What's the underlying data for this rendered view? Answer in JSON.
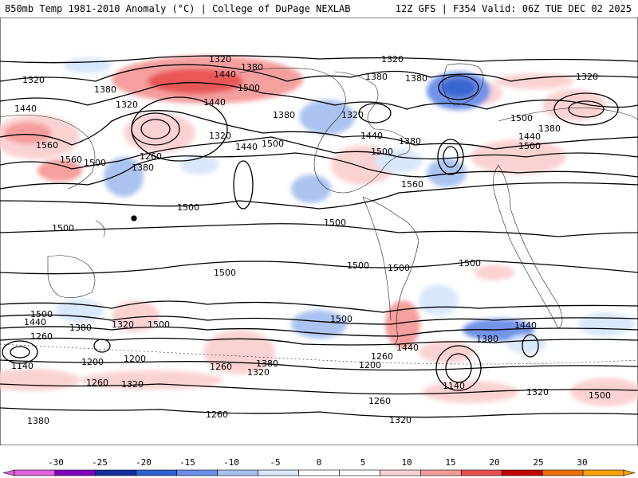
{
  "header": {
    "title_left": "850mb Temp 1981-2010 Anomaly (°C) | College of DuPage NEXLAB",
    "title_right": "12Z GFS | F354 Valid: 06Z TUE DEC 02 2025"
  },
  "colorbar": {
    "ticks": [
      "-30",
      "-25",
      "-20",
      "-15",
      "-10",
      "-5",
      "0",
      "5",
      "10",
      "15",
      "20",
      "25",
      "30"
    ],
    "colors": [
      "#e060e0",
      "#8000c0",
      "#1030a0",
      "#2f5fd0",
      "#6a8ee8",
      "#a8c0f0",
      "#d8e6fb",
      "#ffffff",
      "#ffffff",
      "#fbd0d0",
      "#f59a9a",
      "#e85050",
      "#c00000",
      "#e87000",
      "#ffa000"
    ]
  },
  "map": {
    "background": "#ffffff",
    "height_labels": [
      {
        "text": "1320"
      },
      {
        "text": "1380"
      },
      {
        "text": "1440"
      },
      {
        "text": "1500"
      },
      {
        "text": "1560"
      },
      {
        "text": "1260"
      },
      {
        "text": "1200"
      },
      {
        "text": "1140"
      }
    ],
    "contour_labels": [
      "1320",
      "1380",
      "1320",
      "1440",
      "1500",
      "1380",
      "1380",
      "1320",
      "1320",
      "1440",
      "1320",
      "1380",
      "1320",
      "1380",
      "1440",
      "1440",
      "1500",
      "1440",
      "1500",
      "1560",
      "1560",
      "1260",
      "1500",
      "1380",
      "1500",
      "1500",
      "1500",
      "1500",
      "1500",
      "1500",
      "1560",
      "1500",
      "1440",
      "1380",
      "1380",
      "1320",
      "1500",
      "1440",
      "1380",
      "1260",
      "1200",
      "1140",
      "1200",
      "1260",
      "1320",
      "1380",
      "1320",
      "1260",
      "1200",
      "1140",
      "1260",
      "1320",
      "1260",
      "1320",
      "1380",
      "1260",
      "1320",
      "1440",
      "1380",
      "1440",
      "1500",
      "1500",
      "1500",
      "1500",
      "1500"
    ]
  }
}
